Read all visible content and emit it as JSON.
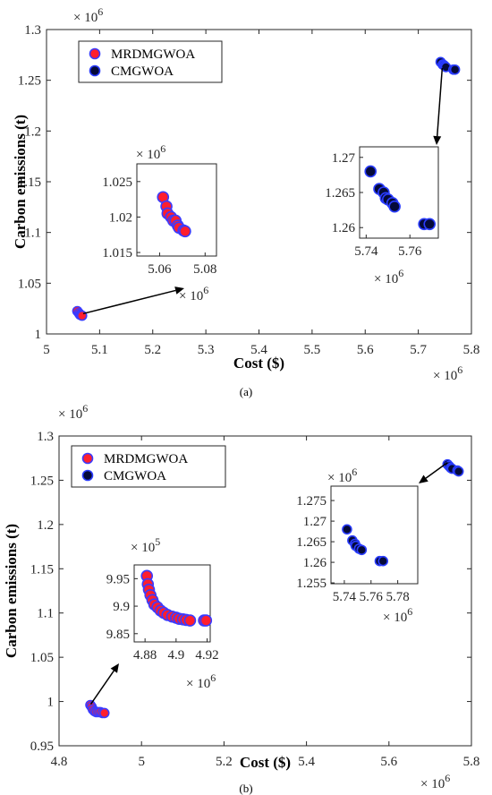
{
  "chart_data": [
    {
      "panel": "a",
      "type": "scatter",
      "caption": "(a)",
      "xlabel": "Cost ($)",
      "ylabel": "Carbon emissions (t)",
      "x_multiplier": "× 10^6",
      "y_multiplier": "× 10^6",
      "xlim": [
        5,
        5.8
      ],
      "ylim": [
        1,
        1.3
      ],
      "xticks": [
        "5",
        "5.1",
        "5.2",
        "5.3",
        "5.4",
        "5.5",
        "5.6",
        "5.7",
        "5.8"
      ],
      "yticks": [
        "1",
        "1.05",
        "1.1",
        "1.15",
        "1.2",
        "1.25",
        "1.3"
      ],
      "legend": {
        "position": "top-left",
        "entries": [
          "MRDMGWOA",
          "CMGWOA"
        ]
      },
      "series": [
        {
          "name": "MRDMGWOA",
          "points": [
            [
              5.058,
              1.0225
            ],
            [
              5.061,
              1.0205
            ],
            [
              5.063,
              1.019
            ],
            [
              5.065,
              1.0185
            ],
            [
              5.067,
              1.018
            ]
          ]
        },
        {
          "name": "CMGWOA",
          "points": [
            [
              5.742,
              1.268
            ],
            [
              5.746,
              1.2655
            ],
            [
              5.748,
              1.265
            ],
            [
              5.75,
              1.264
            ],
            [
              5.752,
              1.263
            ],
            [
              5.766,
              1.2605
            ],
            [
              5.769,
              1.2605
            ]
          ]
        }
      ],
      "insets": [
        {
          "xlim": [
            5.05,
            5.085
          ],
          "ylim": [
            1.0145,
            1.0275
          ],
          "xticks": [
            "5.06",
            "5.08"
          ],
          "yticks": [
            "1.015",
            "1.02",
            "1.025"
          ],
          "x_multiplier": "× 10^6",
          "y_multiplier": "× 10^6",
          "series": [
            {
              "name": "MRDMGWOA",
              "points": [
                [
                  5.0615,
                  1.0228
                ],
                [
                  5.063,
                  1.0215
                ],
                [
                  5.0635,
                  1.0205
                ],
                [
                  5.065,
                  1.02
                ],
                [
                  5.066,
                  1.0195
                ],
                [
                  5.067,
                  1.0195
                ],
                [
                  5.068,
                  1.0188
                ],
                [
                  5.0685,
                  1.0185
                ],
                [
                  5.0705,
                  1.0181
                ],
                [
                  5.0712,
                  1.018
                ]
              ]
            }
          ]
        },
        {
          "xlim": [
            5.737,
            5.773
          ],
          "ylim": [
            1.2585,
            1.2715
          ],
          "xticks": [
            "5.74",
            "5.76"
          ],
          "yticks": [
            "1.26",
            "1.265",
            "1.27"
          ],
          "x_multiplier": "× 10^6",
          "y_multiplier": null,
          "series": [
            {
              "name": "CMGWOA",
              "points": [
                [
                  5.742,
                  1.268
                ],
                [
                  5.746,
                  1.2655
                ],
                [
                  5.748,
                  1.265
                ],
                [
                  5.749,
                  1.2642
                ],
                [
                  5.75,
                  1.264
                ],
                [
                  5.752,
                  1.2635
                ],
                [
                  5.753,
                  1.263
                ],
                [
                  5.7665,
                  1.2605
                ],
                [
                  5.769,
                  1.2605
                ]
              ]
            }
          ]
        }
      ]
    },
    {
      "panel": "b",
      "type": "scatter",
      "caption": "(b)",
      "xlabel": "Cost ($)",
      "ylabel": "Carbon emissions (t)",
      "x_multiplier": "× 10^6",
      "y_multiplier": "× 10^6",
      "xlim": [
        4.8,
        5.8
      ],
      "ylim": [
        0.95,
        1.3
      ],
      "xticks": [
        "4.8",
        "5",
        "5.2",
        "5.4",
        "5.6",
        "5.8"
      ],
      "yticks": [
        "0.95",
        "1",
        "1.05",
        "1.1",
        "1.15",
        "1.2",
        "1.25",
        "1.3"
      ],
      "legend": {
        "position": "top-left",
        "entries": [
          "MRDMGWOA",
          "CMGWOA"
        ]
      },
      "series": [
        {
          "name": "MRDMGWOA",
          "points": [
            [
              4.876,
              0.996
            ],
            [
              4.879,
              0.994
            ],
            [
              4.882,
              0.991
            ],
            [
              4.886,
              0.989
            ],
            [
              4.89,
              0.988
            ],
            [
              4.895,
              0.988
            ],
            [
              4.9,
              0.988
            ],
            [
              4.905,
              0.987
            ],
            [
              4.91,
              0.987
            ]
          ]
        },
        {
          "name": "CMGWOA",
          "points": [
            [
              5.742,
              1.268
            ],
            [
              5.746,
              1.266
            ],
            [
              5.75,
              1.264
            ],
            [
              5.753,
              1.263
            ],
            [
              5.766,
              1.261
            ],
            [
              5.769,
              1.26
            ]
          ]
        }
      ],
      "insets": [
        {
          "xlim": [
            4.873,
            4.922
          ],
          "ylim": [
            9.835,
            9.975
          ],
          "xticks": [
            "4.88",
            "4.9",
            "4.92"
          ],
          "yticks": [
            "9.85",
            "9.9",
            "9.95"
          ],
          "x_multiplier": "× 10^6",
          "y_multiplier": "× 10^5",
          "series": [
            {
              "name": "MRDMGWOA",
              "points": [
                [
                  4.8812,
                  9.955
                ],
                [
                  4.8818,
                  9.94
                ],
                [
                  4.8825,
                  9.93
                ],
                [
                  4.8835,
                  9.92
                ],
                [
                  4.8848,
                  9.911
                ],
                [
                  4.886,
                  9.903
                ],
                [
                  4.888,
                  9.898
                ],
                [
                  4.89,
                  9.892
                ],
                [
                  4.892,
                  9.888
                ],
                [
                  4.8945,
                  9.884
                ],
                [
                  4.8975,
                  9.881
                ],
                [
                  4.9,
                  9.879
                ],
                [
                  4.902,
                  9.877
                ],
                [
                  4.9045,
                  9.876
                ],
                [
                  4.9065,
                  9.875
                ],
                [
                  4.909,
                  9.874
                ],
                [
                  4.918,
                  9.874
                ],
                [
                  4.9193,
                  9.874
                ]
              ]
            }
          ]
        },
        {
          "xlim": [
            5.73,
            5.795
          ],
          "ylim": [
            1.2548,
            1.2785
          ],
          "xticks": [
            "5.74",
            "5.76",
            "5.78"
          ],
          "yticks": [
            "1.255",
            "1.26",
            "1.265",
            "1.27",
            "1.275"
          ],
          "x_multiplier": "× 10^6",
          "y_multiplier": "× 10^6",
          "series": [
            {
              "name": "CMGWOA",
              "points": [
                [
                  5.742,
                  1.268
                ],
                [
                  5.746,
                  1.2653
                ],
                [
                  5.748,
                  1.2645
                ],
                [
                  5.7485,
                  1.264
                ],
                [
                  5.751,
                  1.2633
                ],
                [
                  5.753,
                  1.263
                ],
                [
                  5.7665,
                  1.2603
                ],
                [
                  5.769,
                  1.2603
                ]
              ]
            }
          ]
        }
      ]
    }
  ],
  "colors": {
    "mrdmgwoa_face": "#ff1f2e",
    "mrdmgwoa_edge": "#3b3bff",
    "cmgwoa_face": "#050a3a",
    "cmgwoa_edge": "#2a3cff",
    "arrow": "#000000",
    "axis": "#262626"
  }
}
